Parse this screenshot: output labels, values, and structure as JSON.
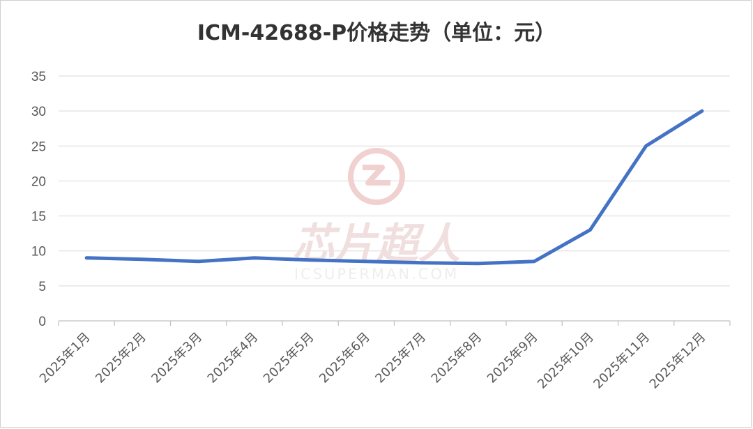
{
  "chart_data": {
    "type": "line",
    "title": "ICM-42688-P价格走势（单位：元）",
    "categories": [
      "2025年1月",
      "2025年2月",
      "2025年3月",
      "2025年4月",
      "2025年5月",
      "2025年6月",
      "2025年7月",
      "2025年8月",
      "2025年9月",
      "2025年10月",
      "2025年11月",
      "2025年12月"
    ],
    "series": [
      {
        "values": [
          9,
          8.8,
          8.5,
          9,
          8.7,
          8.5,
          8.3,
          8.2,
          8.5,
          13,
          25,
          30
        ]
      }
    ],
    "ylim": [
      0,
      35
    ],
    "yticks": [
      0,
      5,
      10,
      15,
      20,
      25,
      30,
      35
    ],
    "grid": true,
    "line_color": "#4472C4"
  },
  "watermark": {
    "text": "芯片超人",
    "subtext": "ICSUPERMAN.COM",
    "color": "#e9b3b3"
  }
}
